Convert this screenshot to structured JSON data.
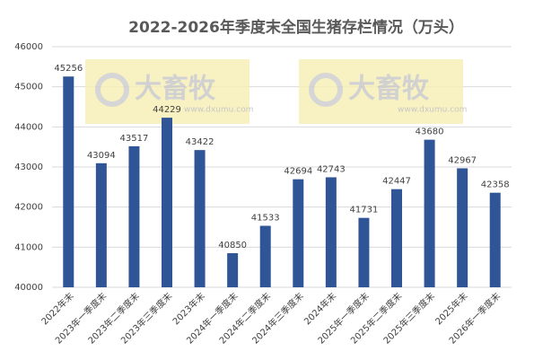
{
  "chart_data": {
    "type": "bar",
    "title": "2022-2026年季度末全国生猪存栏情况（万头）",
    "categories": [
      "2022年末",
      "2023年一季度末",
      "2023年二季度末",
      "2023年三季度末",
      "2023年末",
      "2024年一季度末",
      "2024年二季度末",
      "2024年三季度末",
      "2024年末",
      "2025年一季度末",
      "2025年二季度末",
      "2025年三季度末",
      "2025年末",
      "2026年一季度末"
    ],
    "values": [
      45256,
      43094,
      43517,
      44229,
      43422,
      40850,
      41533,
      42694,
      42743,
      41731,
      42447,
      43680,
      42967,
      42358
    ],
    "color": "#2f5597",
    "ylim": [
      40000,
      46000
    ],
    "yticks": [
      40000,
      41000,
      42000,
      43000,
      44000,
      45000,
      46000
    ],
    "grid": true,
    "watermark": {
      "name": "大畜牧",
      "url": "www.dxumu.com"
    }
  }
}
